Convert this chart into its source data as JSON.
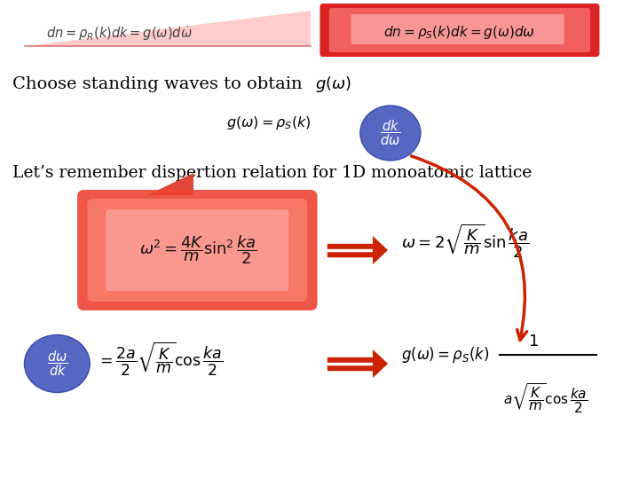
{
  "bg_color": "#ffffff",
  "text_color": "#000000",
  "red_dark": "#cc2200",
  "red_medium": "#ee4422",
  "red_arrow": "#cc2200",
  "blue_oval": "#4455cc",
  "top_left_formula": "dn = \\rho_R(k)dk = g(\\omega)d\\dot{\\omega}",
  "top_right_formula": "dn = \\rho_S(k)dk = g(\\omega)d\\omega",
  "choose_text": "Choose standing waves to obtain",
  "lets_remember_text": "Let’s remember dispertion relation for 1D monoatomic lattice"
}
